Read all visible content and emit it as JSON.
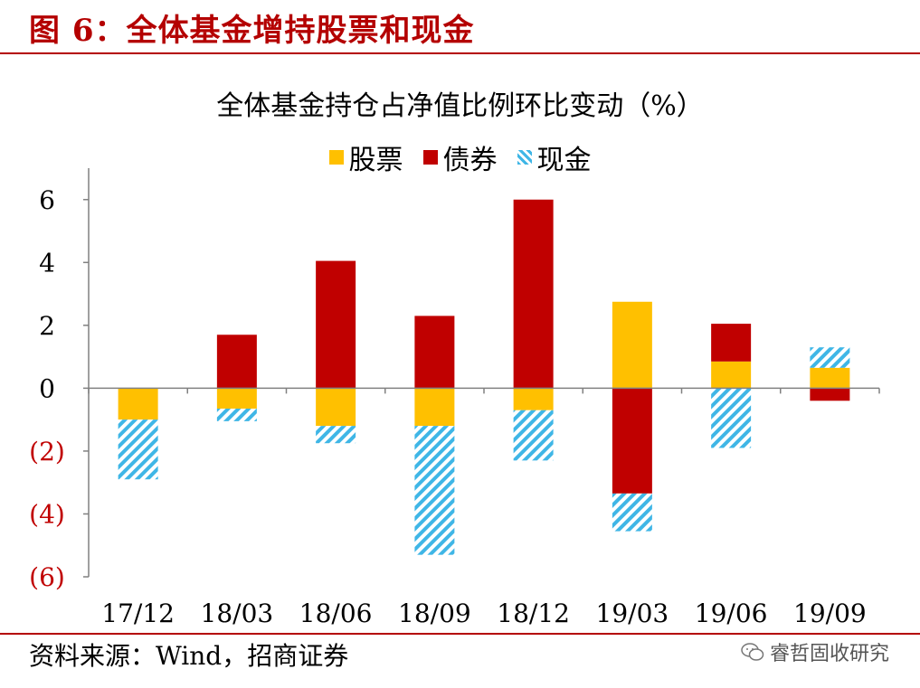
{
  "header": {
    "title": "图 6：全体基金增持股票和现金"
  },
  "source": "资料来源：Wind，招商证券",
  "watermark": {
    "text": "睿哲固收研究",
    "icon": "wechat-icon"
  },
  "chart_data": {
    "type": "bar",
    "stacked": true,
    "title": "全体基金持仓占净值比例环比变动（%）",
    "xlabel": "",
    "ylabel": "",
    "categories": [
      "17/12",
      "18/03",
      "18/06",
      "18/09",
      "18/12",
      "19/03",
      "19/06",
      "19/09"
    ],
    "ylim": [
      -6,
      7
    ],
    "yticks": [
      6,
      4,
      2,
      0,
      -2,
      -4,
      -6
    ],
    "ytick_labels": [
      "6",
      "4",
      "2",
      "0",
      "(2)",
      "(4)",
      "(6)"
    ],
    "grid": false,
    "legend_position": "top-center",
    "series": [
      {
        "name": "股票",
        "color": "#ffc000",
        "pattern": "solid",
        "values": [
          -1.0,
          -0.65,
          -1.2,
          -1.2,
          -0.7,
          2.75,
          0.85,
          0.65
        ]
      },
      {
        "name": "债券",
        "color": "#c00000",
        "pattern": "solid",
        "values": [
          0.0,
          1.7,
          4.05,
          2.3,
          6.0,
          -3.35,
          1.2,
          -0.4
        ]
      },
      {
        "name": "现金",
        "color": "#3fb6e6",
        "pattern": "hatch",
        "values": [
          -1.9,
          -0.4,
          -0.55,
          -4.1,
          -1.6,
          -1.2,
          -1.9,
          0.65
        ]
      }
    ],
    "colors": {
      "positive_tick": "#000000",
      "negative_tick": "#c00000",
      "axis": "#808080"
    }
  }
}
